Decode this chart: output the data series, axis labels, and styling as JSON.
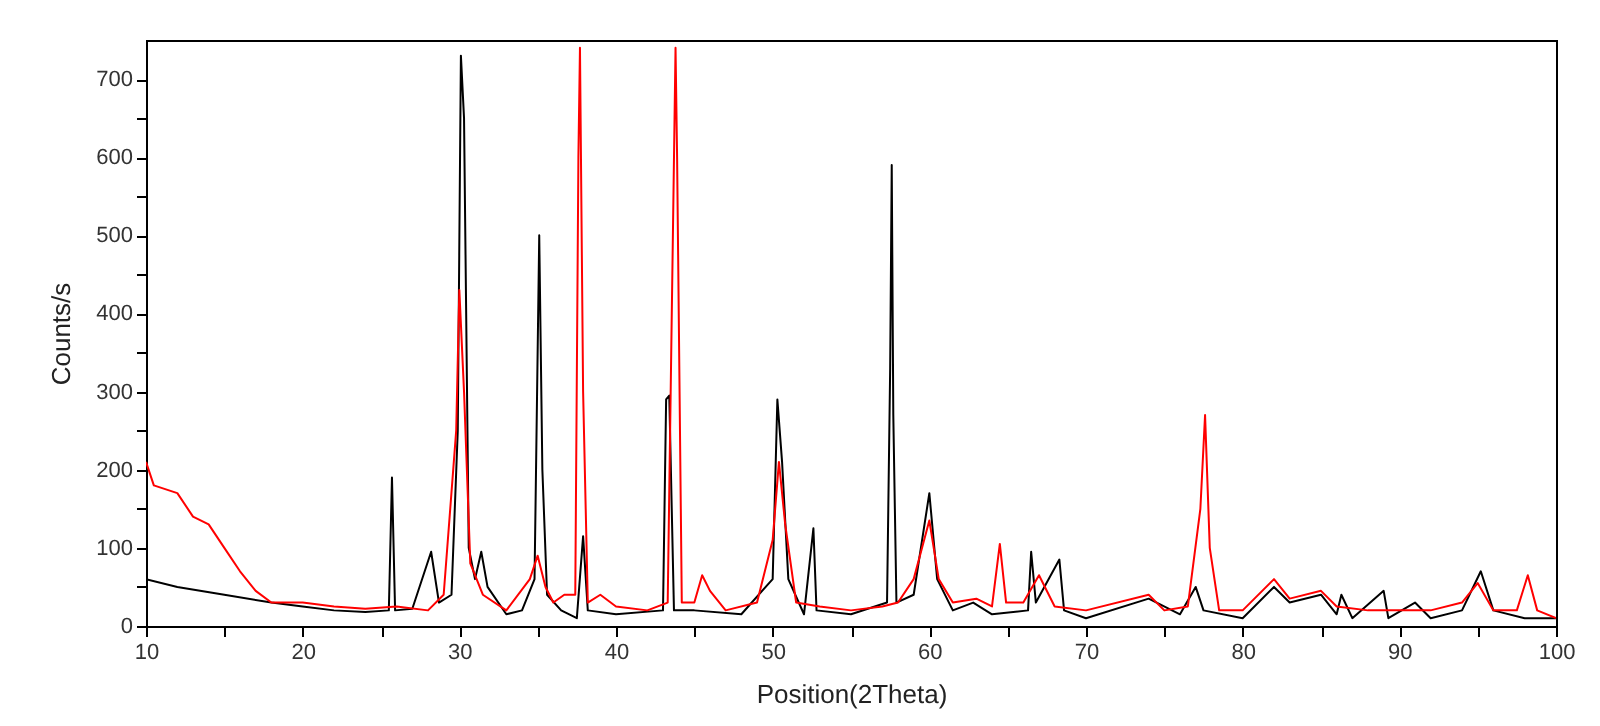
{
  "chart_data": {
    "type": "line",
    "xlabel": "Position(2Theta)",
    "ylabel": "Counts/s",
    "xlim": [
      10,
      100
    ],
    "ylim": [
      0,
      750
    ],
    "xticks": [
      10,
      {
        "value": 15,
        "label": null
      },
      20,
      {
        "value": 25,
        "label": null
      },
      30,
      {
        "value": 35,
        "label": null
      },
      40,
      {
        "value": 45,
        "label": null
      },
      50,
      {
        "value": 55,
        "label": null
      },
      60,
      {
        "value": 65,
        "label": null
      },
      70,
      {
        "value": 75,
        "label": null
      },
      80,
      {
        "value": 85,
        "label": null
      },
      90,
      {
        "value": 95,
        "label": null
      },
      100
    ],
    "yticks": [
      0,
      {
        "value": 50,
        "label": null
      },
      100,
      {
        "value": 150,
        "label": null
      },
      200,
      {
        "value": 250,
        "label": null
      },
      300,
      {
        "value": 350,
        "label": null
      },
      400,
      {
        "value": 450,
        "label": null
      },
      500,
      {
        "value": 550,
        "label": null
      },
      600,
      {
        "value": 650,
        "label": null
      },
      700
    ],
    "grid": false,
    "series": [
      {
        "color": "#000000",
        "x": [
          10,
          12,
          15,
          18,
          20,
          22,
          24,
          25.5,
          25.7,
          25.9,
          27,
          28.2,
          28.7,
          29.5,
          29.9,
          30.1,
          30.3,
          30.6,
          31,
          31.4,
          31.8,
          33,
          34,
          34.8,
          35.1,
          35.3,
          35.6,
          36.5,
          37.5,
          37.9,
          38.2,
          40,
          43,
          43.2,
          43.4,
          43.7,
          45,
          48,
          50,
          50.3,
          50.6,
          51,
          52,
          52.6,
          52.8,
          55,
          57.3,
          57.5,
          57.6,
          57.7,
          57.9,
          59,
          60,
          60.5,
          61.5,
          62.8,
          64,
          66.3,
          66.5,
          66.8,
          68.3,
          68.6,
          70,
          74,
          76,
          77,
          77.5,
          80,
          82,
          83,
          85,
          86,
          86.3,
          87,
          89,
          89.3,
          91,
          92,
          94,
          95.2,
          96,
          98,
          100
        ],
        "values": [
          60,
          50,
          40,
          30,
          25,
          20,
          18,
          20,
          190,
          20,
          22,
          95,
          30,
          40,
          250,
          730,
          650,
          100,
          60,
          95,
          50,
          15,
          20,
          60,
          500,
          200,
          40,
          20,
          10,
          115,
          20,
          15,
          20,
          290,
          295,
          20,
          20,
          15,
          60,
          290,
          210,
          60,
          15,
          125,
          20,
          15,
          30,
          330,
          590,
          270,
          30,
          40,
          170,
          60,
          20,
          30,
          15,
          20,
          95,
          30,
          85,
          20,
          10,
          35,
          15,
          50,
          20,
          10,
          50,
          30,
          40,
          15,
          40,
          10,
          45,
          10,
          30,
          10,
          20,
          70,
          20,
          10,
          10
        ]
      },
      {
        "color": "#ff0000",
        "x": [
          10,
          10.5,
          12,
          13,
          14,
          15,
          16,
          17,
          18,
          20,
          22,
          24,
          26,
          28,
          29,
          29.8,
          30,
          30.3,
          30.7,
          31.5,
          33,
          34.5,
          35,
          35.5,
          36,
          36.7,
          37.4,
          37.6,
          37.7,
          37.9,
          38.2,
          39,
          40,
          42,
          43.3,
          43.8,
          43.9,
          44.2,
          45,
          45.5,
          46,
          47,
          49,
          50,
          50.4,
          50.8,
          51.5,
          53,
          55,
          57,
          58,
          59,
          60,
          60.6,
          61.5,
          63,
          64,
          64.5,
          64.9,
          66,
          67,
          68,
          70,
          74,
          75,
          76.5,
          77.3,
          77.6,
          77.9,
          78.5,
          80,
          82,
          83,
          85,
          86,
          88,
          92,
          94,
          95,
          96,
          97.5,
          98.2,
          98.8,
          100
        ],
        "values": [
          210,
          180,
          170,
          140,
          130,
          100,
          70,
          45,
          30,
          30,
          25,
          22,
          25,
          20,
          40,
          250,
          430,
          300,
          80,
          40,
          20,
          60,
          90,
          50,
          30,
          40,
          40,
          600,
          740,
          300,
          30,
          40,
          25,
          20,
          30,
          740,
          600,
          30,
          30,
          65,
          45,
          20,
          30,
          110,
          210,
          130,
          30,
          25,
          20,
          25,
          30,
          60,
          135,
          60,
          30,
          35,
          25,
          105,
          30,
          30,
          65,
          25,
          20,
          40,
          20,
          25,
          150,
          270,
          100,
          20,
          20,
          60,
          35,
          45,
          25,
          20,
          20,
          30,
          55,
          20,
          20,
          65,
          20,
          10
        ]
      }
    ]
  }
}
